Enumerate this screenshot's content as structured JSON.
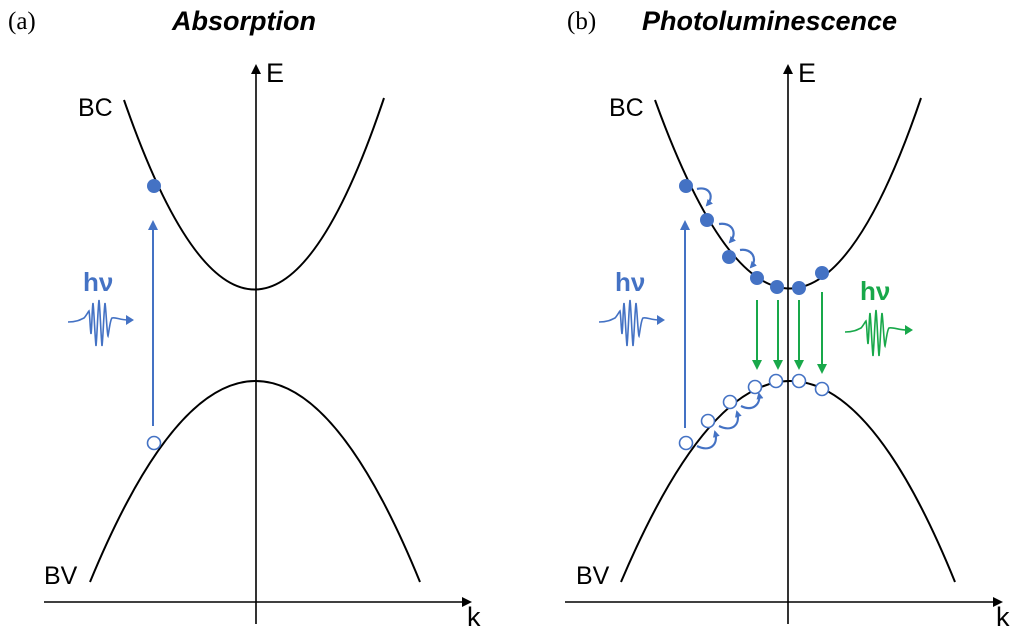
{
  "colors": {
    "axis": "#000000",
    "electron": "#4472c4",
    "hole": "#4472c4",
    "absorption": "#4472c4",
    "emission": "#18a84a"
  },
  "panel_a": {
    "tag": "(a)",
    "title": "Absorption",
    "energy_axis": "E",
    "momentum_axis": "k",
    "conduction_band": "BC",
    "valence_band": "BV",
    "photon_label": "hν",
    "photon_icon": "photon-wave-packet-icon"
  },
  "panel_b": {
    "tag": "(b)",
    "title": "Photoluminescence",
    "energy_axis": "E",
    "momentum_axis": "k",
    "conduction_band": "BC",
    "valence_band": "BV",
    "absorbed_photon_label": "hν",
    "emitted_photon_label": "hν",
    "photon_icon": "photon-wave-packet-icon"
  }
}
